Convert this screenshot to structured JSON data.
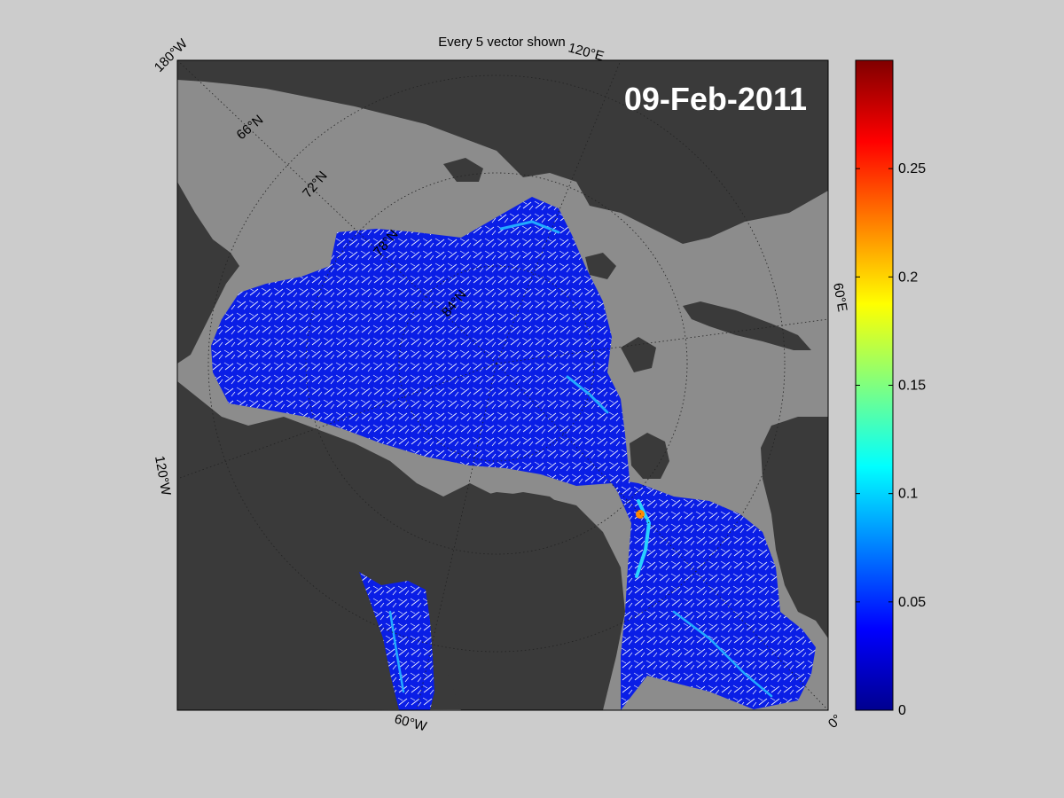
{
  "title": "Every 5 vector shown",
  "date": "09-Feb-2011",
  "map": {
    "projection": "polar stereographic",
    "graticule_labels": {
      "lon_180W": "180°W",
      "lon_120E": "120°E",
      "lon_60E": "60°E",
      "lon_120W": "120°W",
      "lon_60W": "60°W",
      "lon_0": "0°",
      "lat_66N": "66°N",
      "lat_72N": "72°N",
      "lat_78N": "78°N",
      "lat_84N": "84°N"
    },
    "colors": {
      "ocean": "#8c8c8c",
      "land": "#3a3a3a",
      "field_low": "#0a1ee6",
      "vectors": "#ffffff"
    }
  },
  "colorbar": {
    "ticks": [
      "0",
      "0.05",
      "0.1",
      "0.15",
      "0.2",
      "0.25"
    ],
    "min": 0,
    "max": 0.3,
    "colormap": "jet"
  }
}
